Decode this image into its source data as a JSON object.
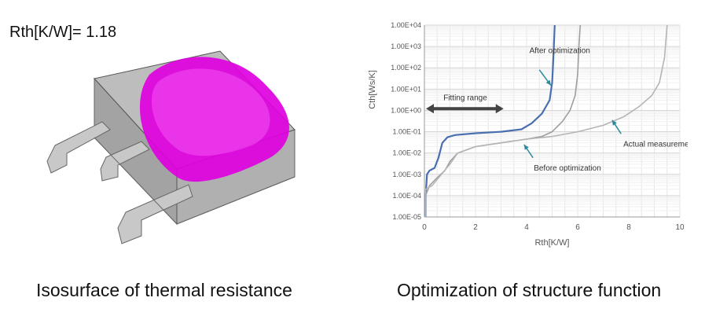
{
  "left_panel": {
    "rth_label": "Rth[K/W]= 1.18",
    "caption": "Isosurface of thermal resistance"
  },
  "right_panel": {
    "caption": "Optimization of structure function"
  },
  "chart_data": {
    "type": "line",
    "title": "",
    "xlabel": "Rth[K/W]",
    "ylabel": "Cth[Ws/K]",
    "xlim": [
      0,
      10
    ],
    "x_ticks": [
      "0",
      "2",
      "4",
      "6",
      "8",
      "10"
    ],
    "y_scale": "log",
    "ylim": [
      1e-05,
      10000
    ],
    "y_ticks": [
      "1.00E-05",
      "1.00E-04",
      "1.00E-03",
      "1.00E-02",
      "1.00E-01",
      "1.00E+00",
      "1.00E+01",
      "1.00E+02",
      "1.00E+03",
      "1.00E+04"
    ],
    "grid": true,
    "legend": "none",
    "series": [
      {
        "name": "After optimization",
        "color": "#4a6fb0",
        "points": [
          [
            0.05,
            1e-05
          ],
          [
            0.05,
            0.0001
          ],
          [
            0.1,
            0.001
          ],
          [
            0.2,
            0.0015
          ],
          [
            0.4,
            0.002
          ],
          [
            0.55,
            0.006
          ],
          [
            0.7,
            0.03
          ],
          [
            0.9,
            0.055
          ],
          [
            1.2,
            0.07
          ],
          [
            2.0,
            0.085
          ],
          [
            3.0,
            0.1
          ],
          [
            3.8,
            0.13
          ],
          [
            4.2,
            0.25
          ],
          [
            4.6,
            0.7
          ],
          [
            4.9,
            3
          ],
          [
            5.0,
            20
          ],
          [
            5.05,
            300
          ],
          [
            5.1,
            10000
          ]
        ]
      },
      {
        "name": "Before optimization",
        "color": "#9e9e9e",
        "points": [
          [
            0.05,
            1e-05
          ],
          [
            0.05,
            0.0001
          ],
          [
            0.2,
            0.0003
          ],
          [
            0.5,
            0.0007
          ],
          [
            0.8,
            0.0015
          ],
          [
            1.0,
            0.004
          ],
          [
            1.3,
            0.01
          ],
          [
            2.0,
            0.02
          ],
          [
            3.0,
            0.03
          ],
          [
            4.0,
            0.045
          ],
          [
            4.6,
            0.06
          ],
          [
            5.0,
            0.1
          ],
          [
            5.4,
            0.3
          ],
          [
            5.7,
            1
          ],
          [
            5.9,
            5
          ],
          [
            6.0,
            50
          ],
          [
            6.05,
            1000
          ],
          [
            6.1,
            10000
          ]
        ]
      },
      {
        "name": "Actual measurement",
        "color": "#b5b5b5",
        "points": [
          [
            0.05,
            1e-05
          ],
          [
            0.05,
            0.0002
          ],
          [
            0.3,
            0.0003
          ],
          [
            0.6,
            0.0008
          ],
          [
            1.0,
            0.003
          ],
          [
            1.3,
            0.01
          ],
          [
            2.0,
            0.02
          ],
          [
            3.0,
            0.03
          ],
          [
            4.0,
            0.045
          ],
          [
            5.0,
            0.06
          ],
          [
            6.0,
            0.1
          ],
          [
            7.0,
            0.2
          ],
          [
            7.8,
            0.5
          ],
          [
            8.4,
            1.5
          ],
          [
            8.9,
            5
          ],
          [
            9.2,
            20
          ],
          [
            9.4,
            300
          ],
          [
            9.5,
            10000
          ]
        ]
      }
    ],
    "annotations": [
      {
        "text": "Fitting range",
        "x": 1.6,
        "y": 3
      },
      {
        "text": "After optimization",
        "x": 5.3,
        "y": 500
      },
      {
        "text": "Before optimization",
        "x": 5.6,
        "y": 0.0015
      },
      {
        "text": "Actual measurement",
        "x": 9.2,
        "y": 0.02
      }
    ],
    "fitting_range_arrow": {
      "x_from": 0.0,
      "x_to": 3.1,
      "y": 1.2
    }
  }
}
